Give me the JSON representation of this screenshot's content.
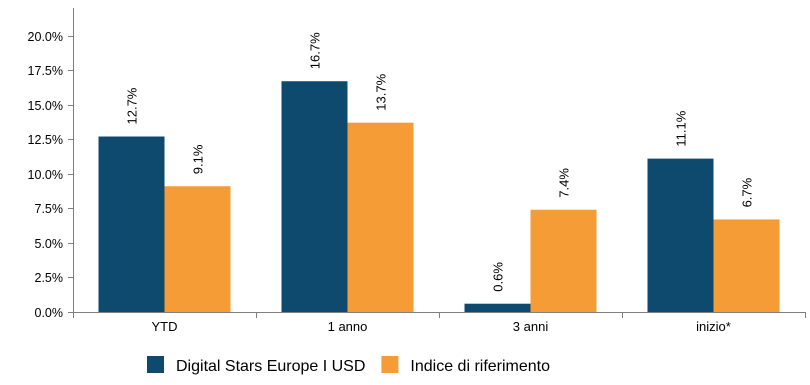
{
  "chart_data": {
    "type": "bar",
    "categories": [
      "YTD",
      "1 anno",
      "3 anni",
      "inizio*"
    ],
    "series": [
      {
        "name": "Digital Stars Europe I USD",
        "values": [
          12.7,
          16.7,
          0.6,
          11.1
        ],
        "labels": [
          "12.7%",
          "16.7%",
          "0.6%",
          "11.1%"
        ],
        "color": "#0e4a6e"
      },
      {
        "name": "Indice di riferimento",
        "values": [
          9.1,
          13.7,
          7.4,
          6.7
        ],
        "labels": [
          "9.1%",
          "13.7%",
          "7.4%",
          "6.7%"
        ],
        "color": "#f59c36"
      }
    ],
    "ylim": [
      0,
      22
    ],
    "yticks": [
      0,
      2.5,
      5,
      7.5,
      10,
      12.5,
      15,
      17.5,
      20
    ],
    "ytick_labels": [
      "0.0%",
      "2.5%",
      "5.0%",
      "7.5%",
      "10.0%",
      "12.5%",
      "15.0%",
      "17.5%",
      "20.0%"
    ],
    "grid": false,
    "legend_position": "bottom",
    "title": "",
    "xlabel": "",
    "ylabel": ""
  }
}
